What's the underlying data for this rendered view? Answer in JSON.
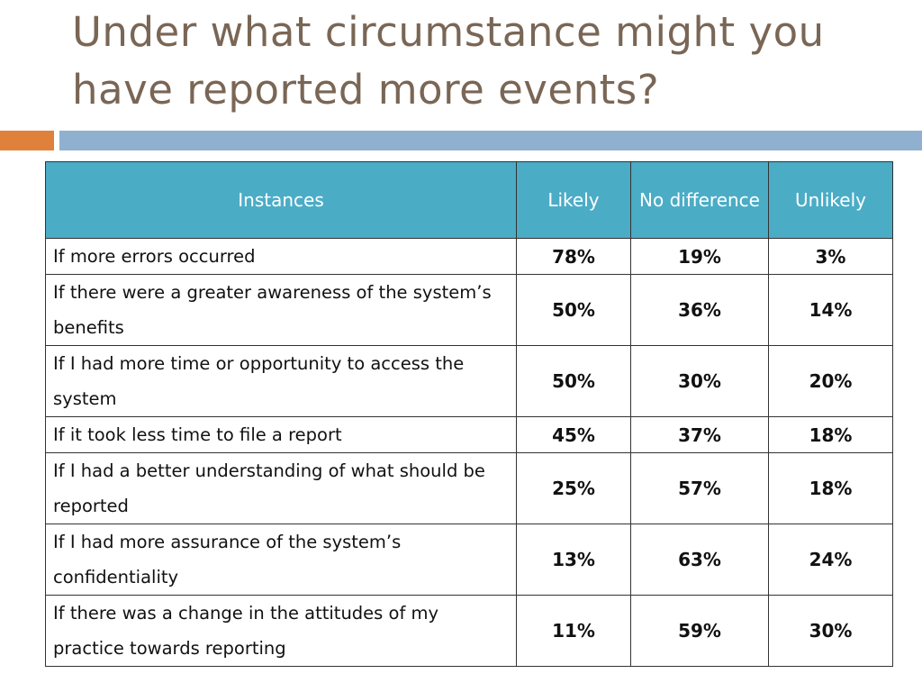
{
  "title": "Under what circumstance might you have reported more events?",
  "colors": {
    "title": "#7a6655",
    "accent_orange": "#e0813b",
    "accent_blue": "#8fb1cf",
    "header_bg": "#4bacc6"
  },
  "table": {
    "headers": [
      "Instances",
      "Likely",
      "No difference",
      "Unlikely"
    ],
    "rows": [
      {
        "instance": "If more errors occurred",
        "likely": "78%",
        "no_difference": "19%",
        "unlikely": "3%"
      },
      {
        "instance": "If there were a greater awareness of the system’s benefits",
        "likely": "50%",
        "no_difference": "36%",
        "unlikely": "14%"
      },
      {
        "instance": "If I had more time or opportunity to access the system",
        "likely": "50%",
        "no_difference": "30%",
        "unlikely": "20%"
      },
      {
        "instance": "If it took less time to file a report",
        "likely": "45%",
        "no_difference": "37%",
        "unlikely": "18%"
      },
      {
        "instance": "If I had a better understanding of what should be reported",
        "likely": "25%",
        "no_difference": "57%",
        "unlikely": "18%"
      },
      {
        "instance": "If I had more assurance of the system’s confidentiality",
        "likely": "13%",
        "no_difference": "63%",
        "unlikely": "24%"
      },
      {
        "instance": "If there was a change in the attitudes of my practice towards reporting",
        "likely": "11%",
        "no_difference": "59%",
        "unlikely": "30%"
      }
    ]
  }
}
